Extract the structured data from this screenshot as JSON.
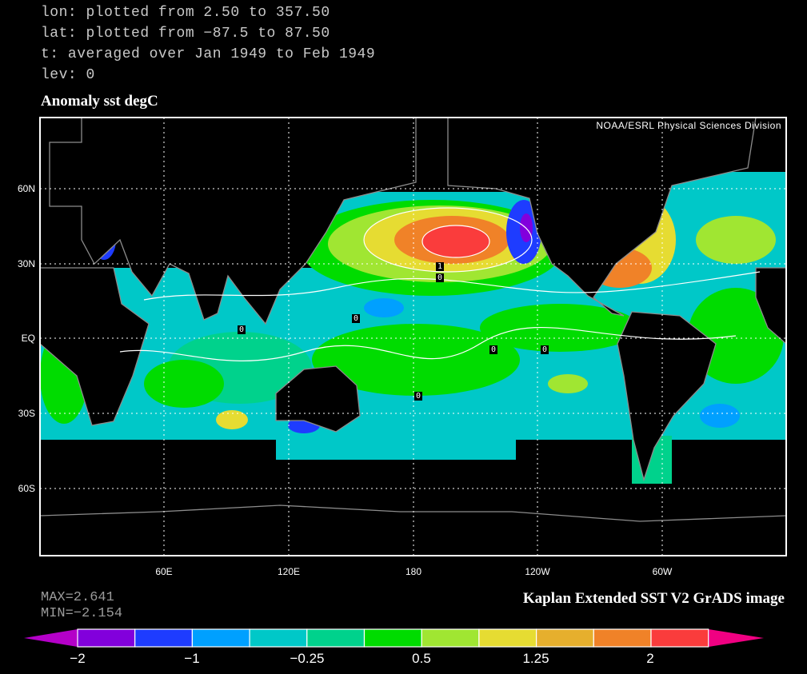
{
  "header": {
    "lines": [
      "lon: plotted from 2.50 to 357.50",
      "lat: plotted from -87.5 to 87.50",
      "t: averaged over Jan 1949 to Feb 1949",
      "lev: 0"
    ],
    "title": "Anomaly sst degC"
  },
  "map": {
    "credit": "NOAA/ESRL Physical Sciences Division",
    "lat_labels": [
      "60N",
      "30N",
      "EQ",
      "30S",
      "60S"
    ],
    "lon_labels": [
      "60E",
      "120E",
      "180",
      "120W",
      "60W"
    ],
    "contour_labels": [
      "0",
      "0",
      "1",
      "0",
      "0",
      "0",
      "0"
    ],
    "background_color": "#000000",
    "coastline_color": "#8c8c8c"
  },
  "stats": {
    "max": "MAX=2.641",
    "min": "MIN=-2.154"
  },
  "source": "Kaplan Extended SST V2 GrADS image",
  "colorbar": {
    "tick_labels": [
      "-2",
      "-1",
      "-0.25",
      "0.5",
      "1.25",
      "2"
    ],
    "low_arrow_color": "#b400c8",
    "high_arrow_color": "#f00082",
    "colors": [
      "#8200dc",
      "#1e3cff",
      "#00a0ff",
      "#00c8c8",
      "#00d28c",
      "#00dc00",
      "#a0e632",
      "#e6dc32",
      "#e6af2d",
      "#f08228",
      "#fa3c3c"
    ]
  }
}
